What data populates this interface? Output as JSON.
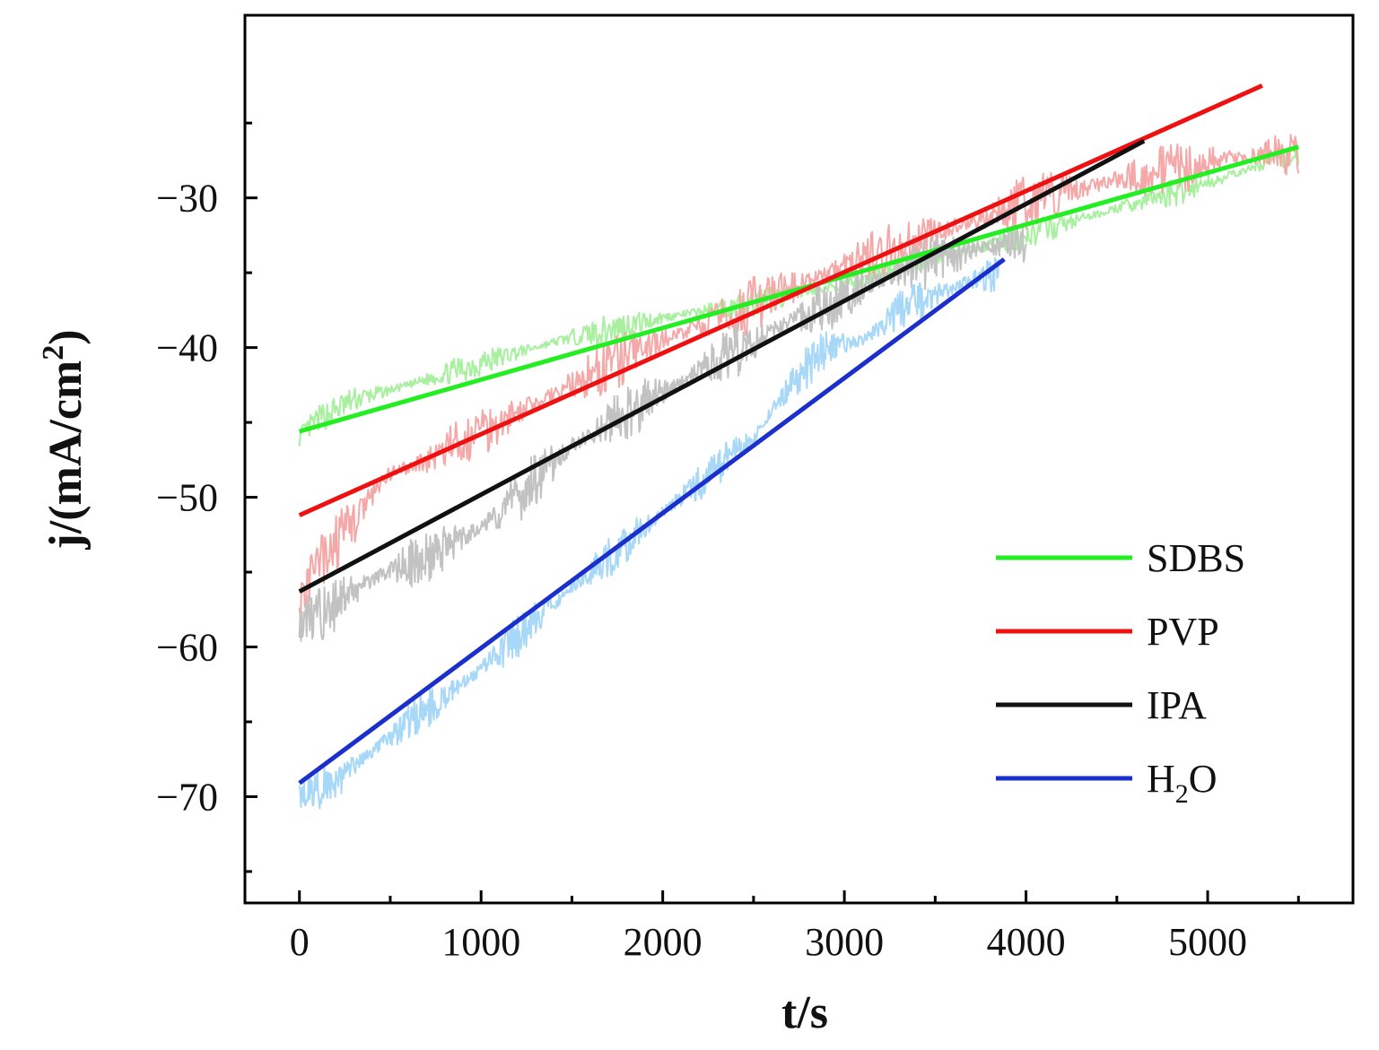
{
  "chart_data": {
    "type": "line",
    "title": "",
    "xlabel": "t/s",
    "ylabel": "j/(mA/cm²)",
    "ylabel_parts": {
      "main": "j/(mA/cm",
      "sup": "2",
      "end": ")"
    },
    "xlim": [
      -300,
      5800
    ],
    "ylim": [
      -77.1,
      -17.8
    ],
    "x_major_ticks": [
      0,
      1000,
      2000,
      3000,
      4000,
      5000
    ],
    "x_tick_labels": [
      "0",
      "1000",
      "2000",
      "3000",
      "4000",
      "5000"
    ],
    "x_minor_ticks": [
      500,
      1500,
      2500,
      3500,
      4500,
      5500
    ],
    "y_major_ticks": [
      -70,
      -60,
      -50,
      -40,
      -30
    ],
    "y_tick_labels": [
      "−70",
      "−60",
      "−50",
      "−40",
      "−30"
    ],
    "y_minor_ticks": [
      -75,
      -65,
      -55,
      -45,
      -35,
      -25
    ],
    "grid": false,
    "legend_position": "bottom-right",
    "series": [
      {
        "name": "SDBS",
        "legend_label": "SDBS",
        "fit_color": "#22ee22",
        "raw_color": "#a8f0a0",
        "fit": {
          "x": [
            0,
            5500
          ],
          "y": [
            -45.6,
            -26.6
          ]
        },
        "raw": {
          "x": [
            0,
            100,
            300,
            600,
            1000,
            1500,
            2000,
            2500,
            3000,
            3500,
            4000,
            4500,
            5000,
            5500
          ],
          "y": [
            -46.0,
            -44.8,
            -43.5,
            -42.5,
            -41.0,
            -39.3,
            -38.0,
            -37.0,
            -35.8,
            -34.0,
            -32.5,
            -30.7,
            -29.0,
            -27.0
          ]
        },
        "raw_noise": 0.6
      },
      {
        "name": "PVP",
        "legend_label": "PVP",
        "fit_color": "#ee1111",
        "raw_color": "#f4a8a8",
        "fit": {
          "x": [
            0,
            5300
          ],
          "y": [
            -51.2,
            -22.5
          ]
        },
        "raw": {
          "x": [
            0,
            100,
            300,
            500,
            800,
            1000,
            1500,
            2000,
            2500,
            3000,
            3500,
            4000,
            4500,
            5000,
            5500
          ],
          "y": [
            -57.0,
            -54.5,
            -51.5,
            -48.5,
            -47.0,
            -45.5,
            -42.5,
            -39.5,
            -37.2,
            -34.5,
            -32.3,
            -30.3,
            -28.8,
            -27.6,
            -26.8
          ]
        },
        "raw_noise": 1.2
      },
      {
        "name": "IPA",
        "legend_label": "IPA",
        "fit_color": "#111111",
        "raw_color": "#c2c2c2",
        "fit": {
          "x": [
            0,
            4650
          ],
          "y": [
            -56.3,
            -26.2
          ]
        },
        "raw": {
          "x": [
            0,
            150,
            400,
            700,
            1000,
            1200,
            1500,
            2000,
            2500,
            3000,
            3500,
            4000
          ],
          "y": [
            -58.5,
            -57.5,
            -55.5,
            -54.0,
            -52.0,
            -50.0,
            -46.5,
            -43.0,
            -39.5,
            -36.5,
            -34.0,
            -32.8
          ]
        },
        "raw_noise": 1.2
      },
      {
        "name": "H2O",
        "legend_label": "H",
        "legend_sub": "2",
        "legend_end": "O",
        "fit_color": "#1a2fcc",
        "raw_color": "#a8d8f8",
        "fit": {
          "x": [
            0,
            3880
          ],
          "y": [
            -69.1,
            -34.1
          ]
        },
        "raw": {
          "x": [
            0,
            200,
            500,
            1000,
            1500,
            2000,
            2500,
            2700,
            2900,
            3100,
            3300,
            3500,
            3700,
            3850
          ],
          "y": [
            -70.0,
            -69.0,
            -66.0,
            -61.5,
            -56.0,
            -51.0,
            -46.0,
            -42.5,
            -40.0,
            -39.5,
            -37.5,
            -36.5,
            -35.5,
            -35.0
          ]
        },
        "raw_noise": 0.9
      }
    ]
  }
}
